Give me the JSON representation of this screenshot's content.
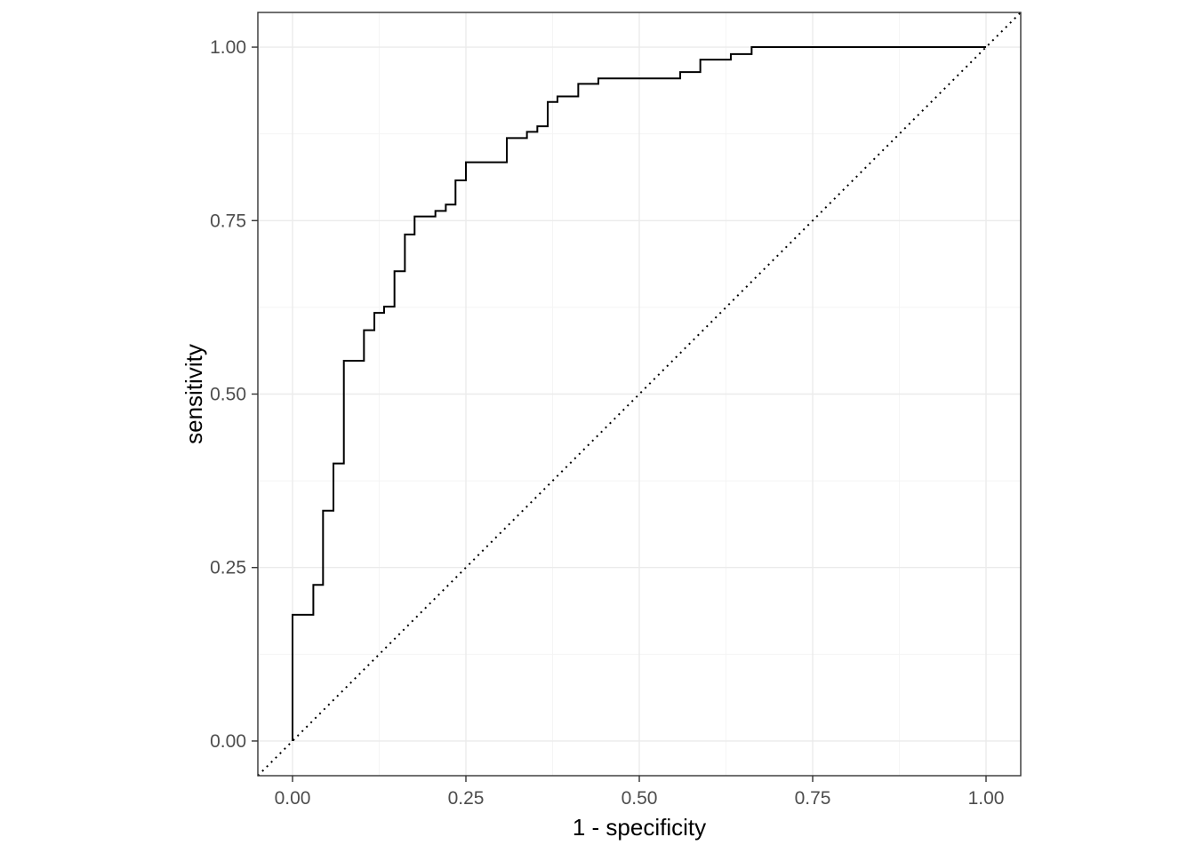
{
  "chart_data": {
    "type": "line",
    "title": "",
    "xlabel": "1 - specificity",
    "ylabel": "sensitivity",
    "xlim": [
      -0.05,
      1.05
    ],
    "ylim": [
      -0.05,
      1.05
    ],
    "x_ticks": [
      {
        "value": 0,
        "label": "0.00"
      },
      {
        "value": 0.25,
        "label": "0.25"
      },
      {
        "value": 0.5,
        "label": "0.50"
      },
      {
        "value": 0.75,
        "label": "0.75"
      },
      {
        "value": 1,
        "label": "1.00"
      }
    ],
    "y_ticks": [
      {
        "value": 0,
        "label": "0.00"
      },
      {
        "value": 0.25,
        "label": "0.25"
      },
      {
        "value": 0.5,
        "label": "0.50"
      },
      {
        "value": 0.75,
        "label": "0.75"
      },
      {
        "value": 1,
        "label": "1.00"
      }
    ],
    "grid": true,
    "legend": "none",
    "series": [
      {
        "style": "step",
        "color": "#000000",
        "points": [
          [
            0,
            0
          ],
          [
            0,
            0.182
          ],
          [
            0.03,
            0.182
          ],
          [
            0.03,
            0.225
          ],
          [
            0.044,
            0.225
          ],
          [
            0.044,
            0.332
          ],
          [
            0.059,
            0.332
          ],
          [
            0.059,
            0.4
          ],
          [
            0.074,
            0.4
          ],
          [
            0.074,
            0.548
          ],
          [
            0.103,
            0.548
          ],
          [
            0.103,
            0.592
          ],
          [
            0.118,
            0.592
          ],
          [
            0.118,
            0.617
          ],
          [
            0.132,
            0.617
          ],
          [
            0.132,
            0.626
          ],
          [
            0.147,
            0.626
          ],
          [
            0.147,
            0.677
          ],
          [
            0.162,
            0.677
          ],
          [
            0.162,
            0.73
          ],
          [
            0.176,
            0.73
          ],
          [
            0.176,
            0.756
          ],
          [
            0.206,
            0.756
          ],
          [
            0.206,
            0.764
          ],
          [
            0.221,
            0.764
          ],
          [
            0.221,
            0.773
          ],
          [
            0.235,
            0.773
          ],
          [
            0.235,
            0.808
          ],
          [
            0.25,
            0.808
          ],
          [
            0.25,
            0.834
          ],
          [
            0.309,
            0.834
          ],
          [
            0.309,
            0.869
          ],
          [
            0.338,
            0.869
          ],
          [
            0.338,
            0.878
          ],
          [
            0.353,
            0.878
          ],
          [
            0.353,
            0.886
          ],
          [
            0.368,
            0.886
          ],
          [
            0.368,
            0.921
          ],
          [
            0.382,
            0.921
          ],
          [
            0.382,
            0.929
          ],
          [
            0.412,
            0.929
          ],
          [
            0.412,
            0.947
          ],
          [
            0.441,
            0.947
          ],
          [
            0.441,
            0.955
          ],
          [
            0.559,
            0.955
          ],
          [
            0.559,
            0.964
          ],
          [
            0.588,
            0.964
          ],
          [
            0.588,
            0.982
          ],
          [
            0.632,
            0.982
          ],
          [
            0.632,
            0.99
          ],
          [
            0.662,
            0.99
          ],
          [
            0.662,
            1.0
          ],
          [
            1.0,
            1.0
          ]
        ]
      },
      {
        "style": "dotted",
        "color": "#000000",
        "points": [
          [
            -0.05,
            -0.05
          ],
          [
            1.05,
            1.05
          ]
        ]
      }
    ]
  }
}
